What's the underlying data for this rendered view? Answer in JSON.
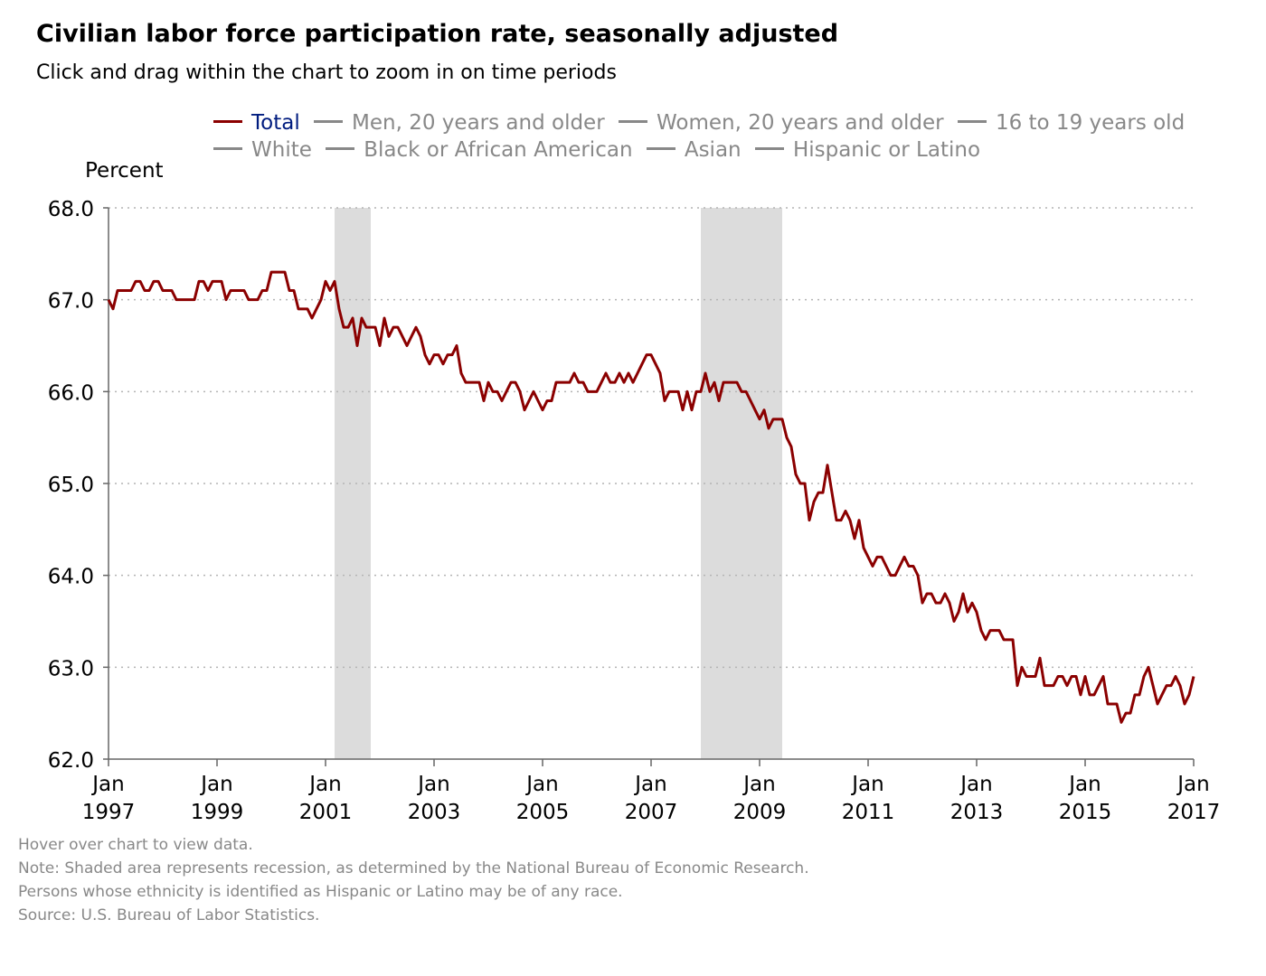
{
  "chart_data": {
    "type": "line",
    "title": "Civilian labor force participation rate, seasonally adjusted",
    "subtitle": "Click and drag within the chart to zoom in on time periods",
    "ylabel": "Percent",
    "ylim": [
      62.0,
      68.0
    ],
    "yticks": [
      "62.0",
      "63.0",
      "64.0",
      "65.0",
      "66.0",
      "67.0",
      "68.0"
    ],
    "xlim": [
      "1997-01",
      "2017-01"
    ],
    "xticks": [
      {
        "month": "Jan",
        "year": "1997"
      },
      {
        "month": "Jan",
        "year": "1999"
      },
      {
        "month": "Jan",
        "year": "2001"
      },
      {
        "month": "Jan",
        "year": "2003"
      },
      {
        "month": "Jan",
        "year": "2005"
      },
      {
        "month": "Jan",
        "year": "2007"
      },
      {
        "month": "Jan",
        "year": "2009"
      },
      {
        "month": "Jan",
        "year": "2011"
      },
      {
        "month": "Jan",
        "year": "2013"
      },
      {
        "month": "Jan",
        "year": "2015"
      },
      {
        "month": "Jan",
        "year": "2017"
      }
    ],
    "grid": true,
    "legend_position": "top",
    "legend_rows": [
      [
        {
          "name": "Total",
          "active": true
        },
        {
          "name": "Men, 20 years and older",
          "active": false
        },
        {
          "name": "Women, 20 years and older",
          "active": false
        },
        {
          "name": "16 to 19 years old",
          "active": false
        }
      ],
      [
        {
          "name": "White",
          "active": false
        },
        {
          "name": "Black or African American",
          "active": false
        },
        {
          "name": "Asian",
          "active": false
        },
        {
          "name": "Hispanic or Latino",
          "active": false
        }
      ]
    ],
    "recessions": [
      {
        "start": "2001-03",
        "end": "2001-11"
      },
      {
        "start": "2007-12",
        "end": "2009-06"
      }
    ],
    "series": [
      {
        "name": "Total",
        "color": "#8b0000",
        "start": "1997-01",
        "values": [
          67.0,
          66.9,
          67.1,
          67.1,
          67.1,
          67.1,
          67.2,
          67.2,
          67.1,
          67.1,
          67.2,
          67.2,
          67.1,
          67.1,
          67.1,
          67.0,
          67.0,
          67.0,
          67.0,
          67.0,
          67.2,
          67.2,
          67.1,
          67.2,
          67.2,
          67.2,
          67.0,
          67.1,
          67.1,
          67.1,
          67.1,
          67.0,
          67.0,
          67.0,
          67.1,
          67.1,
          67.3,
          67.3,
          67.3,
          67.3,
          67.1,
          67.1,
          66.9,
          66.9,
          66.9,
          66.8,
          66.9,
          67.0,
          67.2,
          67.1,
          67.2,
          66.9,
          66.7,
          66.7,
          66.8,
          66.5,
          66.8,
          66.7,
          66.7,
          66.7,
          66.5,
          66.8,
          66.6,
          66.7,
          66.7,
          66.6,
          66.5,
          66.6,
          66.7,
          66.6,
          66.4,
          66.3,
          66.4,
          66.4,
          66.3,
          66.4,
          66.4,
          66.5,
          66.2,
          66.1,
          66.1,
          66.1,
          66.1,
          65.9,
          66.1,
          66.0,
          66.0,
          65.9,
          66.0,
          66.1,
          66.1,
          66.0,
          65.8,
          65.9,
          66.0,
          65.9,
          65.8,
          65.9,
          65.9,
          66.1,
          66.1,
          66.1,
          66.1,
          66.2,
          66.1,
          66.1,
          66.0,
          66.0,
          66.0,
          66.1,
          66.2,
          66.1,
          66.1,
          66.2,
          66.1,
          66.2,
          66.1,
          66.2,
          66.3,
          66.4,
          66.4,
          66.3,
          66.2,
          65.9,
          66.0,
          66.0,
          66.0,
          65.8,
          66.0,
          65.8,
          66.0,
          66.0,
          66.2,
          66.0,
          66.1,
          65.9,
          66.1,
          66.1,
          66.1,
          66.1,
          66.0,
          66.0,
          65.9,
          65.8,
          65.7,
          65.8,
          65.6,
          65.7,
          65.7,
          65.7,
          65.5,
          65.4,
          65.1,
          65.0,
          65.0,
          64.6,
          64.8,
          64.9,
          64.9,
          65.2,
          64.9,
          64.6,
          64.6,
          64.7,
          64.6,
          64.4,
          64.6,
          64.3,
          64.2,
          64.1,
          64.2,
          64.2,
          64.1,
          64.0,
          64.0,
          64.1,
          64.2,
          64.1,
          64.1,
          64.0,
          63.7,
          63.8,
          63.8,
          63.7,
          63.7,
          63.8,
          63.7,
          63.5,
          63.6,
          63.8,
          63.6,
          63.7,
          63.6,
          63.4,
          63.3,
          63.4,
          63.4,
          63.4,
          63.3,
          63.3,
          63.3,
          62.8,
          63.0,
          62.9,
          62.9,
          62.9,
          63.1,
          62.8,
          62.8,
          62.8,
          62.9,
          62.9,
          62.8,
          62.9,
          62.9,
          62.7,
          62.9,
          62.7,
          62.7,
          62.8,
          62.9,
          62.6,
          62.6,
          62.6,
          62.4,
          62.5,
          62.5,
          62.7,
          62.7,
          62.9,
          63.0,
          62.8,
          62.6,
          62.7,
          62.8,
          62.8,
          62.9,
          62.8,
          62.6,
          62.7,
          62.9
        ]
      }
    ]
  },
  "notes": {
    "hover": "Hover over chart to view data.",
    "recession_note": "Note: Shaded area represents recession, as determined by the National Bureau of Economic Research.",
    "ethnicity_note": "Persons whose ethnicity is identified as Hispanic or Latino may be of any race.",
    "source": "Source: U.S. Bureau of Labor Statistics."
  }
}
